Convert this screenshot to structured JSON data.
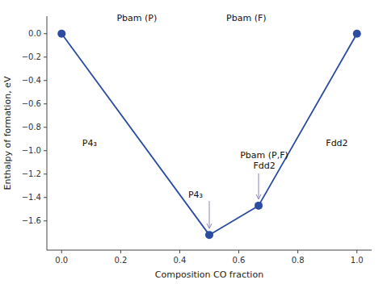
{
  "chart_data": {
    "type": "line",
    "xlabel": "Composition CO fraction",
    "ylabel": "Enthalpy of formation, eV",
    "x": [
      0.0,
      0.5,
      0.667,
      1.0
    ],
    "series": [
      {
        "values": [
          0.0,
          -1.72,
          -1.47,
          0.0
        ],
        "color": "#2B4CA0",
        "marker": "o"
      }
    ],
    "xlim": [
      -0.05,
      1.05
    ],
    "ylim": [
      -1.85,
      0.15
    ],
    "xticks": [
      {
        "value": 0.0,
        "label": "0.0"
      },
      0.2,
      0.4,
      0.6,
      0.8,
      {
        "value": 1.0,
        "label": "1.0"
      }
    ],
    "yticks": [
      {
        "value": 0.0,
        "label": "0.0"
      },
      {
        "value": -0.2,
        "label": "−0.2"
      },
      {
        "value": -0.4,
        "label": "−0.4"
      },
      {
        "value": -0.6,
        "label": "−0.6"
      },
      {
        "value": -0.8,
        "label": "−0.8"
      },
      {
        "value": -1.0,
        "label": "−1.0"
      },
      {
        "value": -1.2,
        "label": "−1.2"
      },
      {
        "value": -1.4,
        "label": "−1.4"
      },
      {
        "value": -1.6,
        "label": "−1.6"
      }
    ],
    "grid": false,
    "annotations": [
      "Pbam (P)",
      "Pbam (F)",
      "P4₃",
      "Fdd2",
      "Pbam (P,F)\nFdd2",
      "P4₃"
    ]
  }
}
